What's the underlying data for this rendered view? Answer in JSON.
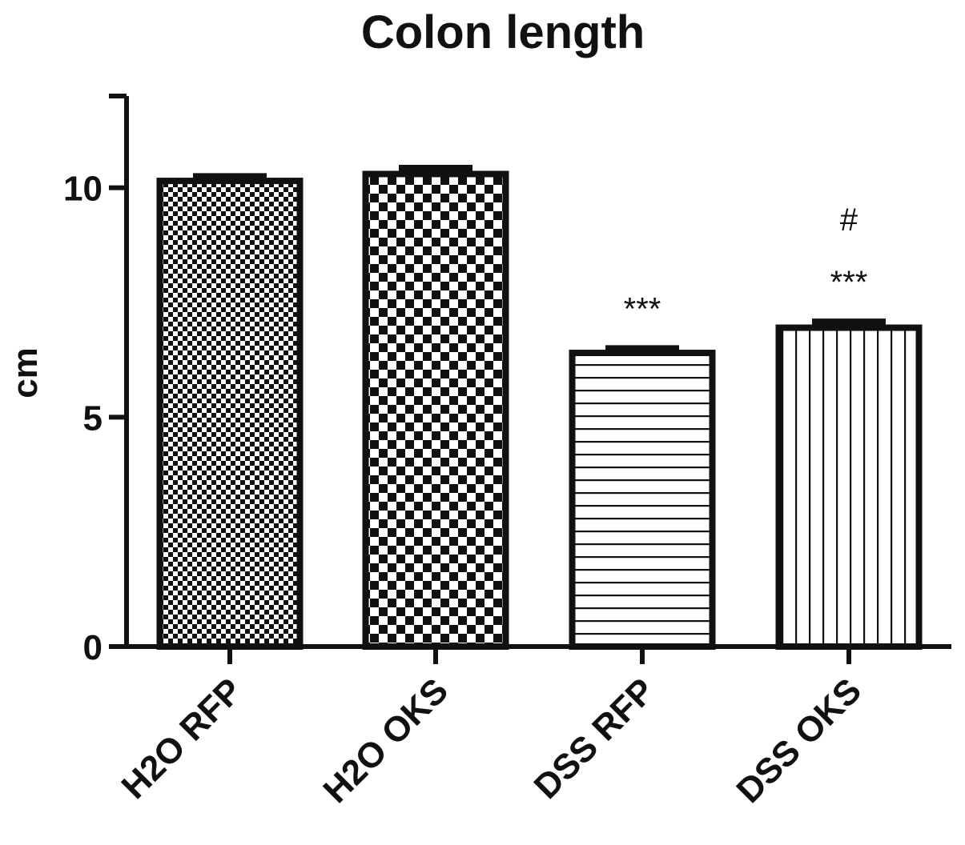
{
  "chart_data": {
    "type": "bar",
    "title": "Colon length",
    "xlabel": "",
    "ylabel": "cm",
    "ylim": [
      0,
      12
    ],
    "yticks": [
      "0",
      "5",
      "10"
    ],
    "categories": [
      "H2O RFP",
      "H2O OKS",
      "DSS RFP",
      "DSS OKS"
    ],
    "values": [
      10.15,
      10.3,
      6.4,
      6.95
    ],
    "errors": [
      0.1,
      0.13,
      0.1,
      0.13
    ],
    "patterns": [
      "fine-checker",
      "checker",
      "horizontal-lines",
      "vertical-lines"
    ],
    "annotations": [
      {
        "category": "DSS RFP",
        "labels": [
          "***"
        ]
      },
      {
        "category": "DSS OKS",
        "labels": [
          "***",
          "#"
        ]
      }
    ],
    "grid": false,
    "colors": {
      "ink": "#111111",
      "fill": "#ffffff"
    }
  }
}
